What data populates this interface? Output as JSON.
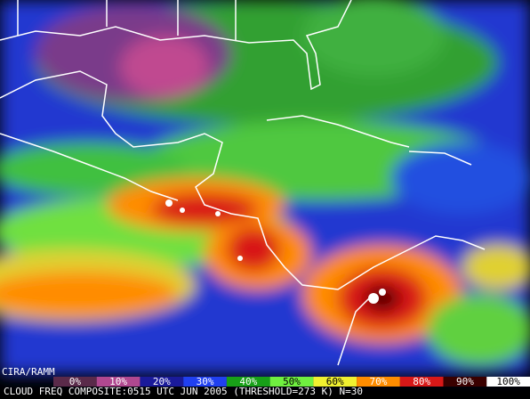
{
  "map": {
    "credit": "CIRA/RAMM",
    "caption": "CLOUD FREQ COMPOSITE:0515 UTC JUN 2005 (THRESHOLD=273 K) N=30",
    "legend": [
      {
        "label": "0%",
        "color": "#5a2a4a"
      },
      {
        "label": "10%",
        "color": "#b04890"
      },
      {
        "label": "20%",
        "color": "#1a1a9a"
      },
      {
        "label": "30%",
        "color": "#2040f0"
      },
      {
        "label": "40%",
        "color": "#18a018"
      },
      {
        "label": "50%",
        "color": "#70f040"
      },
      {
        "label": "60%",
        "color": "#f0f030"
      },
      {
        "label": "70%",
        "color": "#ff8c00"
      },
      {
        "label": "80%",
        "color": "#d81818"
      },
      {
        "label": "90%",
        "color": "#3a0000"
      },
      {
        "label": "100%",
        "color": "#ffffff"
      }
    ]
  }
}
